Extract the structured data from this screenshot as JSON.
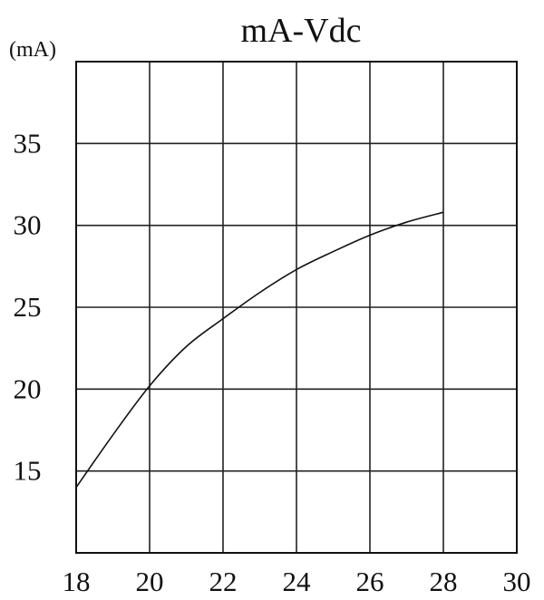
{
  "chart_data": {
    "type": "line",
    "title": "mA-Vdc",
    "ylabel": "(mA)",
    "xlabel": "",
    "xlim": [
      18,
      30
    ],
    "ylim": [
      10,
      40
    ],
    "x_ticks": [
      "18",
      "20",
      "22",
      "24",
      "26",
      "28",
      "30"
    ],
    "y_ticks": [
      "15",
      "20",
      "25",
      "30",
      "35"
    ],
    "grid": true,
    "series": [
      {
        "x": [
          18,
          19,
          20,
          21,
          22,
          23,
          24,
          25,
          26,
          27,
          28
        ],
        "values": [
          14.0,
          17.2,
          20.2,
          22.6,
          24.3,
          25.9,
          27.3,
          28.4,
          29.4,
          30.2,
          30.8
        ]
      }
    ]
  }
}
